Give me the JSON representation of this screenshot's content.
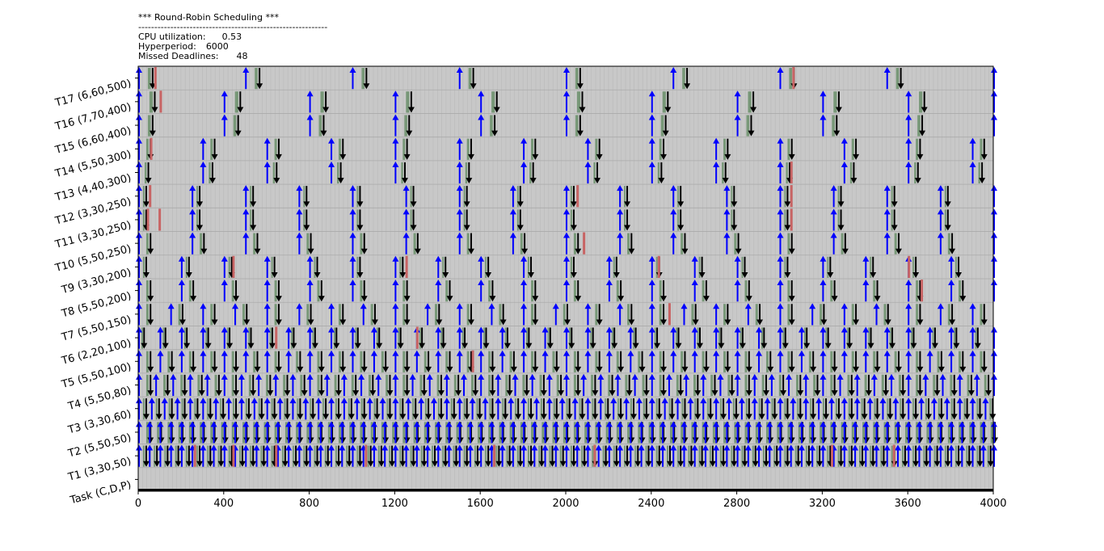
{
  "header": {
    "title": "*** Round-Robin Scheduling ***",
    "separator": "-----------------------------------------------------------",
    "cpu_label": "CPU utilization:",
    "cpu_value": "0.53",
    "hyper_label": "Hyperperiod:",
    "hyper_value": "6000",
    "missed_label": "Missed Deadlines:",
    "missed_value": "48"
  },
  "chart_data": {
    "type": "gantt",
    "xlabel": "",
    "ylabel": "Task (C,D,P)",
    "xlim": [
      0,
      4000
    ],
    "xticks": [
      0,
      400,
      800,
      1200,
      1600,
      2000,
      2400,
      2800,
      3200,
      3600,
      4000
    ],
    "grid": true,
    "colors": {
      "background": "#c8c8c8",
      "release": "#0000ff",
      "deadline": "#000000",
      "finish_ok": "#6a8f6a",
      "miss": "#c86464"
    },
    "tasks": [
      {
        "name": "T1",
        "label": "T1 (3,30,50)",
        "C": 3,
        "D": 30,
        "P": 50
      },
      {
        "name": "T2",
        "label": "T2 (5,50,50)",
        "C": 5,
        "D": 50,
        "P": 50
      },
      {
        "name": "T3",
        "label": "T3 (3,30,60)",
        "C": 3,
        "D": 30,
        "P": 60
      },
      {
        "name": "T4",
        "label": "T4 (5,50,80)",
        "C": 5,
        "D": 50,
        "P": 80
      },
      {
        "name": "T5",
        "label": "T5 (5,50,100)",
        "C": 5,
        "D": 50,
        "P": 100
      },
      {
        "name": "T6",
        "label": "T6 (2,20,100)",
        "C": 2,
        "D": 20,
        "P": 100
      },
      {
        "name": "T7",
        "label": "T7 (5,50,150)",
        "C": 5,
        "D": 50,
        "P": 150
      },
      {
        "name": "T8",
        "label": "T8 (5,50,200)",
        "C": 5,
        "D": 50,
        "P": 200
      },
      {
        "name": "T9",
        "label": "T9 (3,30,200)",
        "C": 3,
        "D": 30,
        "P": 200
      },
      {
        "name": "T10",
        "label": "T10 (5,50,250)",
        "C": 5,
        "D": 50,
        "P": 250
      },
      {
        "name": "T11",
        "label": "T11 (3,30,250)",
        "C": 3,
        "D": 30,
        "P": 250
      },
      {
        "name": "T12",
        "label": "T12 (3,30,250)",
        "C": 3,
        "D": 30,
        "P": 250
      },
      {
        "name": "T13",
        "label": "T13 (4,40,300)",
        "C": 4,
        "D": 40,
        "P": 300
      },
      {
        "name": "T14",
        "label": "T14 (5,50,300)",
        "C": 5,
        "D": 50,
        "P": 300
      },
      {
        "name": "T15",
        "label": "T15 (6,60,400)",
        "C": 6,
        "D": 60,
        "P": 400
      },
      {
        "name": "T16",
        "label": "T16 (7,70,400)",
        "C": 7,
        "D": 70,
        "P": 400
      },
      {
        "name": "T17",
        "label": "T17 (6,60,500)",
        "C": 6,
        "D": 60,
        "P": 500
      }
    ],
    "misses": [
      {
        "task": "T1",
        "x": [
          260,
          440,
          640,
          1060,
          1660,
          2130,
          3240,
          3530
        ]
      },
      {
        "task": "T5",
        "x": [
          1560
        ]
      },
      {
        "task": "T6",
        "x": [
          640,
          1300
        ]
      },
      {
        "task": "T7",
        "x": [
          2480
        ]
      },
      {
        "task": "T8",
        "x": [
          3660
        ]
      },
      {
        "task": "T9",
        "x": [
          440,
          1250,
          2430,
          3600
        ]
      },
      {
        "task": "T10",
        "x": [
          2080
        ]
      },
      {
        "task": "T11",
        "x": [
          40,
          95,
          3050
        ]
      },
      {
        "task": "T12",
        "x": [
          50,
          2050,
          3050
        ]
      },
      {
        "task": "T13",
        "x": [
          3050
        ]
      },
      {
        "task": "T14",
        "x": [
          55
        ]
      },
      {
        "task": "T16",
        "x": [
          100
        ]
      },
      {
        "task": "T17",
        "x": [
          75,
          3060
        ]
      }
    ]
  }
}
